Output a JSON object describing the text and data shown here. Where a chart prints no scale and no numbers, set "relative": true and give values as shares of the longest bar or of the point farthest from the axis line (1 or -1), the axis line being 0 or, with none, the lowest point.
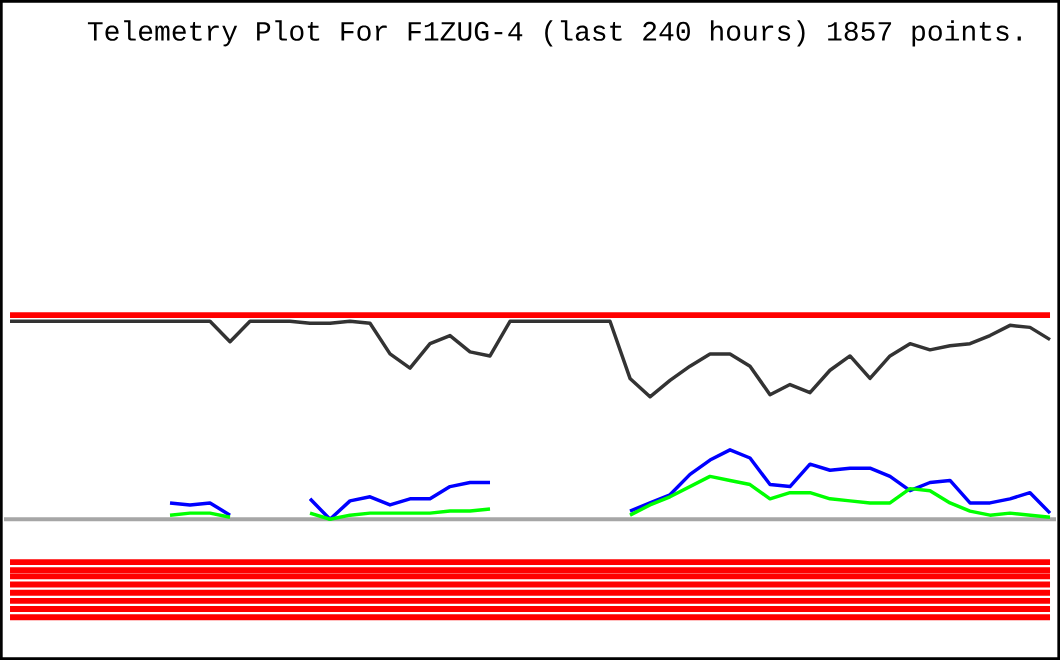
{
  "chart_data": {
    "type": "line",
    "title": "Telemetry Plot For F1ZUG-4 (last 240 hours) 1857 points.",
    "relative": true,
    "categories": [
      null,
      null,
      null,
      null,
      null,
      null,
      null,
      null,
      null,
      null,
      null,
      null,
      null,
      null,
      null,
      null,
      null,
      null,
      null,
      null,
      null,
      null,
      null,
      null,
      null,
      null,
      null,
      null,
      null,
      null,
      null,
      null,
      null,
      null,
      null,
      null,
      null,
      null,
      null,
      null,
      null,
      null,
      null,
      null,
      null,
      null,
      null,
      null,
      null,
      null,
      null,
      null,
      null
    ],
    "series": [
      {
        "color": "#ff0000",
        "values": [
          1,
          1,
          1,
          1,
          1,
          1,
          1,
          1,
          1,
          1,
          1,
          1,
          1,
          1,
          1,
          1,
          1,
          1,
          1,
          1,
          1,
          1,
          1,
          1,
          1,
          1,
          1,
          1,
          1,
          1,
          1,
          1,
          1,
          1,
          1,
          1,
          1,
          1,
          1,
          1,
          1,
          1,
          1,
          1,
          1,
          1,
          1,
          1,
          1,
          1,
          1,
          1,
          1
        ]
      },
      {
        "color": "#333333",
        "values": [
          0.97,
          0.97,
          0.97,
          0.97,
          0.97,
          0.97,
          0.97,
          0.97,
          0.97,
          0.97,
          0.97,
          0.87,
          0.97,
          0.97,
          0.97,
          0.96,
          0.96,
          0.97,
          0.96,
          0.81,
          0.74,
          0.86,
          0.9,
          0.82,
          0.8,
          0.97,
          0.97,
          0.97,
          0.97,
          0.97,
          0.97,
          0.69,
          0.6,
          0.68,
          0.75,
          0.81,
          0.81,
          0.75,
          0.61,
          0.66,
          0.62,
          0.73,
          0.8,
          0.69,
          0.8,
          0.86,
          0.83,
          0.85,
          0.86,
          0.9,
          0.95,
          0.94,
          0.88
        ]
      },
      {
        "color": "#0000ff",
        "values": [
          null,
          null,
          null,
          null,
          null,
          null,
          null,
          null,
          0.08,
          0.07,
          0.08,
          0.02,
          null,
          null,
          null,
          0.1,
          0,
          0.09,
          0.11,
          0.07,
          0.1,
          0.1,
          0.16,
          0.18,
          0.18,
          null,
          null,
          null,
          null,
          null,
          null,
          0.04,
          0.08,
          0.12,
          0.22,
          0.29,
          0.34,
          0.3,
          0.17,
          0.16,
          0.27,
          0.24,
          0.25,
          0.25,
          0.21,
          0.14,
          0.18,
          0.19,
          0.08,
          0.08,
          0.1,
          0.13,
          0.03
        ]
      },
      {
        "color": "#00ff00",
        "values": [
          null,
          null,
          null,
          null,
          null,
          null,
          null,
          null,
          0.02,
          0.03,
          0.03,
          0.01,
          null,
          null,
          null,
          0.03,
          0,
          0.02,
          0.03,
          0.03,
          0.03,
          0.03,
          0.04,
          0.04,
          0.05,
          null,
          null,
          null,
          null,
          null,
          null,
          0.02,
          0.07,
          0.11,
          0.16,
          0.21,
          0.19,
          0.17,
          0.1,
          0.13,
          0.13,
          0.1,
          0.09,
          0.08,
          0.08,
          0.15,
          0.14,
          0.08,
          0.04,
          0.02,
          0.03,
          0.02,
          0.01
        ]
      },
      {
        "color": "#ff0000",
        "values": [
          -0.21,
          -0.21,
          -0.21,
          -0.21,
          -0.21,
          -0.21,
          -0.21,
          -0.21,
          -0.21,
          -0.21,
          -0.21,
          -0.21,
          -0.21,
          -0.21,
          -0.21,
          -0.21,
          -0.21,
          -0.21,
          -0.21,
          -0.21,
          -0.21,
          -0.21,
          -0.21,
          -0.21,
          -0.21,
          -0.21,
          -0.21,
          -0.21,
          -0.21,
          -0.21,
          -0.21,
          -0.21,
          -0.21,
          -0.21,
          -0.21,
          -0.21,
          -0.21,
          -0.21,
          -0.21,
          -0.21,
          -0.21,
          -0.21,
          -0.21,
          -0.21,
          -0.21,
          -0.21,
          -0.21,
          -0.21,
          -0.21,
          -0.21,
          -0.21,
          -0.21,
          -0.21
        ]
      },
      {
        "color": "#ff0000",
        "values": [
          -0.25,
          -0.25,
          -0.25,
          -0.25,
          -0.25,
          -0.25,
          -0.25,
          -0.25,
          -0.25,
          -0.25,
          -0.25,
          -0.25,
          -0.25,
          -0.25,
          -0.25,
          -0.25,
          -0.25,
          -0.25,
          -0.25,
          -0.25,
          -0.25,
          -0.25,
          -0.25,
          -0.25,
          -0.25,
          -0.25,
          -0.25,
          -0.25,
          -0.25,
          -0.25,
          -0.25,
          -0.25,
          -0.25,
          -0.25,
          -0.25,
          -0.25,
          -0.25,
          -0.25,
          -0.25,
          -0.25,
          -0.25,
          -0.25,
          -0.25,
          -0.25,
          -0.25,
          -0.25,
          -0.25,
          -0.25,
          -0.25,
          -0.25,
          -0.25,
          -0.25,
          -0.25
        ]
      },
      {
        "color": "#ff0000",
        "values": [
          -0.28,
          -0.28,
          -0.28,
          -0.28,
          -0.28,
          -0.28,
          -0.28,
          -0.28,
          -0.28,
          -0.28,
          -0.28,
          -0.28,
          -0.28,
          -0.28,
          -0.28,
          -0.28,
          -0.28,
          -0.28,
          -0.28,
          -0.28,
          -0.28,
          -0.28,
          -0.28,
          -0.28,
          -0.28,
          -0.28,
          -0.28,
          -0.28,
          -0.28,
          -0.28,
          -0.28,
          -0.28,
          -0.28,
          -0.28,
          -0.28,
          -0.28,
          -0.28,
          -0.28,
          -0.28,
          -0.28,
          -0.28,
          -0.28,
          -0.28,
          -0.28,
          -0.28,
          -0.28,
          -0.28,
          -0.28,
          -0.28,
          -0.28,
          -0.28,
          -0.28,
          -0.28
        ]
      },
      {
        "color": "#ff0000",
        "values": [
          -0.32,
          -0.32,
          -0.32,
          -0.32,
          -0.32,
          -0.32,
          -0.32,
          -0.32,
          -0.32,
          -0.32,
          -0.32,
          -0.32,
          -0.32,
          -0.32,
          -0.32,
          -0.32,
          -0.32,
          -0.32,
          -0.32,
          -0.32,
          -0.32,
          -0.32,
          -0.32,
          -0.32,
          -0.32,
          -0.32,
          -0.32,
          -0.32,
          -0.32,
          -0.32,
          -0.32,
          -0.32,
          -0.32,
          -0.32,
          -0.32,
          -0.32,
          -0.32,
          -0.32,
          -0.32,
          -0.32,
          -0.32,
          -0.32,
          -0.32,
          -0.32,
          -0.32,
          -0.32,
          -0.32,
          -0.32,
          -0.32,
          -0.32,
          -0.32,
          -0.32,
          -0.32
        ]
      },
      {
        "color": "#ff0000",
        "values": [
          -0.36,
          -0.36,
          -0.36,
          -0.36,
          -0.36,
          -0.36,
          -0.36,
          -0.36,
          -0.36,
          -0.36,
          -0.36,
          -0.36,
          -0.36,
          -0.36,
          -0.36,
          -0.36,
          -0.36,
          -0.36,
          -0.36,
          -0.36,
          -0.36,
          -0.36,
          -0.36,
          -0.36,
          -0.36,
          -0.36,
          -0.36,
          -0.36,
          -0.36,
          -0.36,
          -0.36,
          -0.36,
          -0.36,
          -0.36,
          -0.36,
          -0.36,
          -0.36,
          -0.36,
          -0.36,
          -0.36,
          -0.36,
          -0.36,
          -0.36,
          -0.36,
          -0.36,
          -0.36,
          -0.36,
          -0.36,
          -0.36,
          -0.36,
          -0.36,
          -0.36,
          -0.36
        ]
      },
      {
        "color": "#ff0000",
        "values": [
          -0.4,
          -0.4,
          -0.4,
          -0.4,
          -0.4,
          -0.4,
          -0.4,
          -0.4,
          -0.4,
          -0.4,
          -0.4,
          -0.4,
          -0.4,
          -0.4,
          -0.4,
          -0.4,
          -0.4,
          -0.4,
          -0.4,
          -0.4,
          -0.4,
          -0.4,
          -0.4,
          -0.4,
          -0.4,
          -0.4,
          -0.4,
          -0.4,
          -0.4,
          -0.4,
          -0.4,
          -0.4,
          -0.4,
          -0.4,
          -0.4,
          -0.4,
          -0.4,
          -0.4,
          -0.4,
          -0.4,
          -0.4,
          -0.4,
          -0.4,
          -0.4,
          -0.4,
          -0.4,
          -0.4,
          -0.4,
          -0.4,
          -0.4,
          -0.4,
          -0.4,
          -0.4
        ]
      },
      {
        "color": "#ff0000",
        "values": [
          -0.44,
          -0.44,
          -0.44,
          -0.44,
          -0.44,
          -0.44,
          -0.44,
          -0.44,
          -0.44,
          -0.44,
          -0.44,
          -0.44,
          -0.44,
          -0.44,
          -0.44,
          -0.44,
          -0.44,
          -0.44,
          -0.44,
          -0.44,
          -0.44,
          -0.44,
          -0.44,
          -0.44,
          -0.44,
          -0.44,
          -0.44,
          -0.44,
          -0.44,
          -0.44,
          -0.44,
          -0.44,
          -0.44,
          -0.44,
          -0.44,
          -0.44,
          -0.44,
          -0.44,
          -0.44,
          -0.44,
          -0.44,
          -0.44,
          -0.44,
          -0.44,
          -0.44,
          -0.44,
          -0.44,
          -0.44,
          -0.44,
          -0.44,
          -0.44,
          -0.44,
          -0.44
        ]
      },
      {
        "color": "#ff0000",
        "values": [
          -0.48,
          -0.48,
          -0.48,
          -0.48,
          -0.48,
          -0.48,
          -0.48,
          -0.48,
          -0.48,
          -0.48,
          -0.48,
          -0.48,
          -0.48,
          -0.48,
          -0.48,
          -0.48,
          -0.48,
          -0.48,
          -0.48,
          -0.48,
          -0.48,
          -0.48,
          -0.48,
          -0.48,
          -0.48,
          -0.48,
          -0.48,
          -0.48,
          -0.48,
          -0.48,
          -0.48,
          -0.48,
          -0.48,
          -0.48,
          -0.48,
          -0.48,
          -0.48,
          -0.48,
          -0.48,
          -0.48,
          -0.48,
          -0.48,
          -0.48,
          -0.48,
          -0.48,
          -0.48,
          -0.48,
          -0.48,
          -0.48,
          -0.48,
          -0.48,
          -0.48,
          -0.48
        ]
      }
    ]
  }
}
